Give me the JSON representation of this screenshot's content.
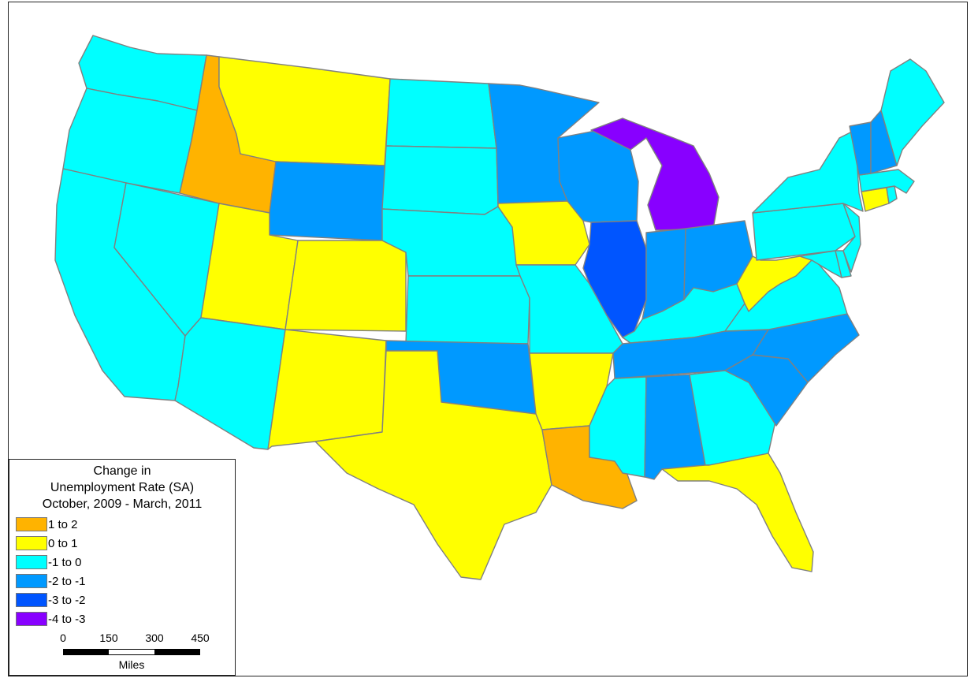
{
  "colors": {
    "bin_1_to_2": "#ffb300",
    "bin_0_to_1": "#ffff00",
    "bin_neg1_to_0": "#00ffff",
    "bin_neg2_to_neg1": "#0099ff",
    "bin_neg3_to_neg2": "#0055ff",
    "bin_neg4_to_neg3": "#8800ff",
    "border": "#808080"
  },
  "legend": {
    "title_line1": "Change in",
    "title_line2": "Unemployment Rate (SA)",
    "title_line3": "October, 2009 - March, 2011",
    "items": [
      {
        "label": "1 to 2",
        "color": "#ffb300"
      },
      {
        "label": "0 to 1",
        "color": "#ffff00"
      },
      {
        "label": "-1 to 0",
        "color": "#00ffff"
      },
      {
        "label": "-2 to -1",
        "color": "#0099ff"
      },
      {
        "label": "-3 to -2",
        "color": "#0055ff"
      },
      {
        "label": "-4 to -3",
        "color": "#8800ff"
      }
    ]
  },
  "scale_bar": {
    "ticks": [
      "0",
      "150",
      "300",
      "450"
    ],
    "unit": "Miles"
  },
  "states": {
    "WA": "bin_neg1_to_0",
    "OR": "bin_neg1_to_0",
    "CA": "bin_neg1_to_0",
    "NV": "bin_neg1_to_0",
    "ID": "bin_1_to_2",
    "MT": "bin_0_to_1",
    "WY": "bin_neg2_to_neg1",
    "UT": "bin_0_to_1",
    "AZ": "bin_neg1_to_0",
    "CO": "bin_0_to_1",
    "NM": "bin_0_to_1",
    "ND": "bin_neg1_to_0",
    "SD": "bin_neg1_to_0",
    "NE": "bin_neg1_to_0",
    "KS": "bin_neg1_to_0",
    "OK": "bin_neg2_to_neg1",
    "TX": "bin_0_to_1",
    "MN": "bin_neg2_to_neg1",
    "IA": "bin_0_to_1",
    "MO": "bin_neg1_to_0",
    "AR": "bin_0_to_1",
    "LA": "bin_1_to_2",
    "WI": "bin_neg2_to_neg1",
    "IL": "bin_neg3_to_neg2",
    "MI": "bin_neg4_to_neg3",
    "IN": "bin_neg2_to_neg1",
    "OH": "bin_neg2_to_neg1",
    "KY": "bin_neg1_to_0",
    "TN": "bin_neg2_to_neg1",
    "MS": "bin_neg1_to_0",
    "AL": "bin_neg2_to_neg1",
    "GA": "bin_neg1_to_0",
    "FL": "bin_0_to_1",
    "SC": "bin_neg2_to_neg1",
    "NC": "bin_neg2_to_neg1",
    "VA": "bin_neg1_to_0",
    "WV": "bin_0_to_1",
    "PA": "bin_neg1_to_0",
    "NY": "bin_neg1_to_0",
    "MD": "bin_neg1_to_0",
    "DE": "bin_neg1_to_0",
    "NJ": "bin_neg1_to_0",
    "CT": "bin_0_to_1",
    "RI": "bin_neg1_to_0",
    "MA": "bin_neg1_to_0",
    "VT": "bin_neg2_to_neg1",
    "NH": "bin_neg2_to_neg1",
    "ME": "bin_neg1_to_0"
  }
}
